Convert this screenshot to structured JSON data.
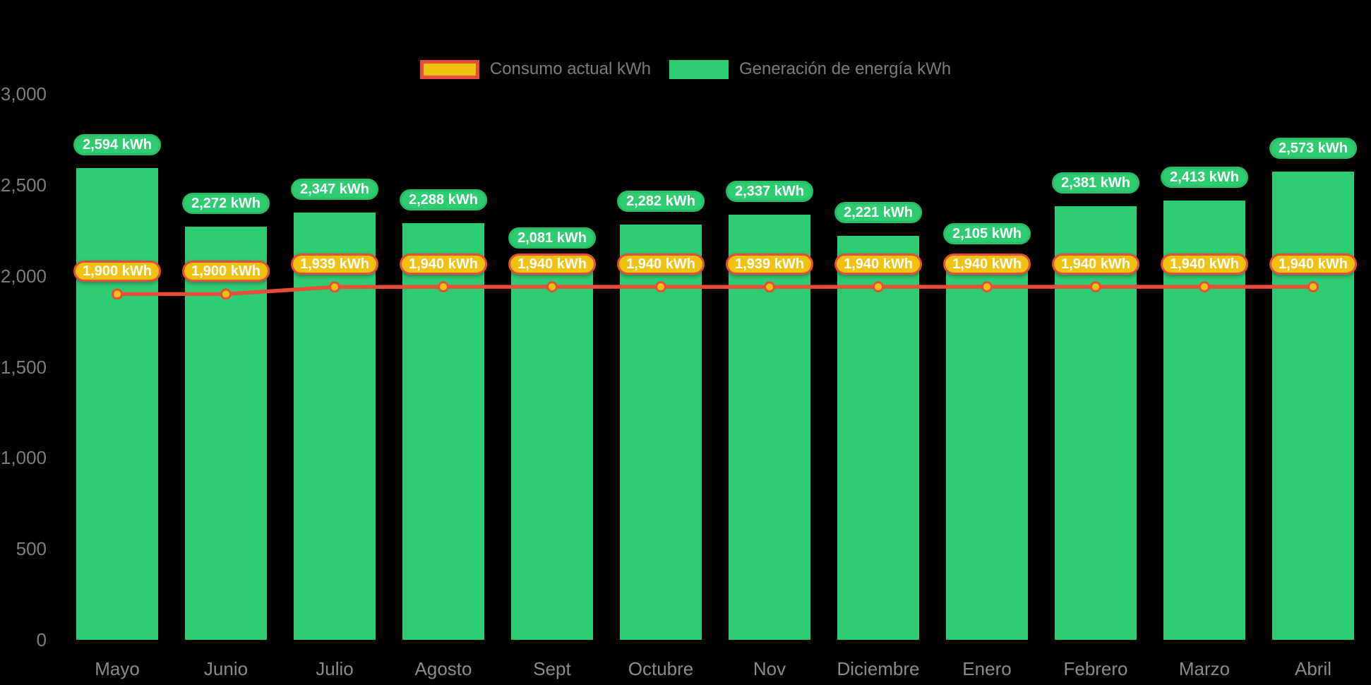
{
  "legend": {
    "consumo_label": "Consumo actual kWh",
    "generacion_label": "Generación de energía kWh"
  },
  "colors": {
    "bar_green": "#2ecc71",
    "pill_green_border": "#29bd67",
    "line_red": "#e74c3c",
    "dot_yellow": "#f1c110",
    "pill_yellow": "#f1c110",
    "y_axis_text": "#7e7e7e",
    "x_axis_text": "#8b8b8b",
    "legend_text": "#7b7c7e",
    "pill_text": "#ffffff",
    "background": "#000000"
  },
  "chart_data": {
    "type": "bar",
    "title": "",
    "xlabel": "",
    "ylabel": "",
    "ylim": [
      0,
      3000
    ],
    "grid": false,
    "legend_position": "top-center",
    "categories": [
      "Mayo",
      "Junio",
      "Julio",
      "Agosto",
      "Sept",
      "Octubre",
      "Nov",
      "Diciembre",
      "Enero",
      "Febrero",
      "Marzo",
      "Abril"
    ],
    "yticks": {
      "values": [
        3000,
        2500,
        2000,
        1500,
        1000,
        500,
        0
      ],
      "labels": [
        "3,000",
        "2,500",
        "2,000",
        "1,500",
        "1,000",
        "500",
        "0"
      ]
    },
    "series": [
      {
        "name": "Generación de energía kWh",
        "type": "bar",
        "values": [
          2594,
          2272,
          2347,
          2288,
          2081,
          2282,
          2337,
          2221,
          2105,
          2381,
          2413,
          2573
        ],
        "labels": [
          "2,594 kWh",
          "2,272 kWh",
          "2,347 kWh",
          "2,288 kWh",
          "2,081 kWh",
          "2,282 kWh",
          "2,337 kWh",
          "2,221 kWh",
          "2,105 kWh",
          "2,381 kWh",
          "2,413 kWh",
          "2,573 kWh"
        ]
      },
      {
        "name": "Consumo actual kWh",
        "type": "line",
        "values": [
          1900,
          1900,
          1939,
          1940,
          1940,
          1940,
          1939,
          1940,
          1940,
          1940,
          1940,
          1940
        ],
        "labels": [
          "1,900 kWh",
          "1,900 kWh",
          "1,939 kWh",
          "1,940 kWh",
          "1,940 kWh",
          "1,940 kWh",
          "1,939 kWh",
          "1,940 kWh",
          "1,940 kWh",
          "1,940 kWh",
          "1,940 kWh",
          "1,940 kWh"
        ]
      }
    ]
  }
}
